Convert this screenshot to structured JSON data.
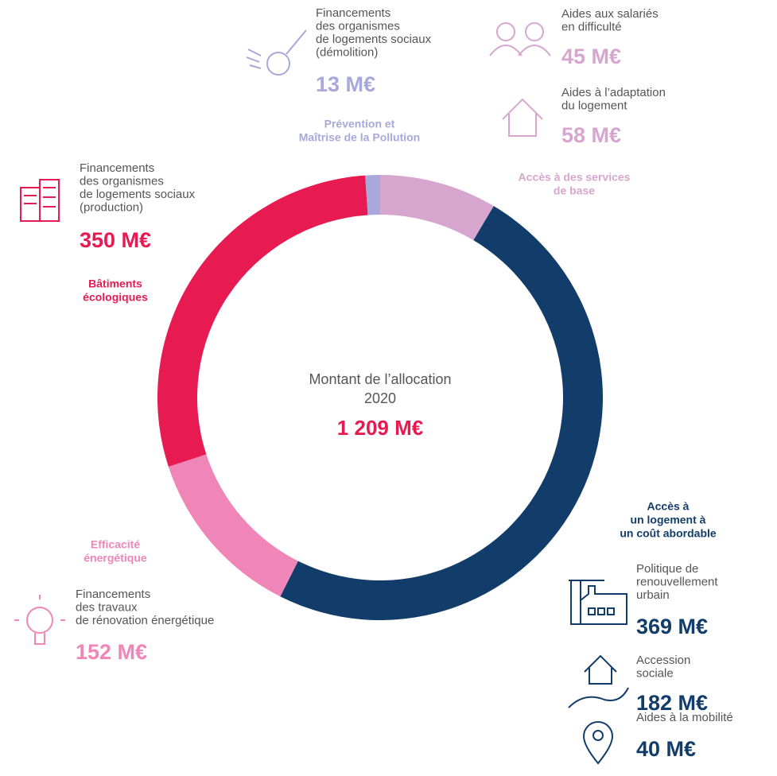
{
  "chart_data": {
    "type": "donut",
    "center": {
      "lines": [
        "Montant de l’allocation",
        "2020"
      ],
      "total": "1 209 M€"
    },
    "categories": [
      {
        "label": [
          "Prévention et",
          "Maîtrise de la Pollution"
        ],
        "color": "#a9a8da",
        "items": [
          {
            "lines": [
              "Financements",
              "des organismes",
              "de logements sociaux",
              "(démolition)"
            ],
            "value": 13,
            "value_label": "13 M€"
          }
        ]
      },
      {
        "label": [
          "Accès à des services",
          "de base"
        ],
        "color": "#d7a6cf",
        "items": [
          {
            "lines": [
              "Aides aux salariés",
              "en difficulté"
            ],
            "value": 45,
            "value_label": "45 M€"
          },
          {
            "lines": [
              "Aides à l’adaptation",
              "du logement"
            ],
            "value": 58,
            "value_label": "58 M€"
          }
        ]
      },
      {
        "label": [
          "Accès à",
          "un logement à",
          "un coût abordable"
        ],
        "color": "#123d6a",
        "items": [
          {
            "lines": [
              "Politique de",
              "renouvellement",
              "urbain"
            ],
            "value": 369,
            "value_label": "369 M€"
          },
          {
            "lines": [
              "Accession",
              "sociale"
            ],
            "value": 182,
            "value_label": "182 M€"
          },
          {
            "lines": [
              "Aides à la mobilité"
            ],
            "value": 40,
            "value_label": "40 M€"
          }
        ]
      },
      {
        "label": [
          "Efficacité",
          "énergétique"
        ],
        "color": "#ef86b7",
        "items": [
          {
            "lines": [
              "Financements",
              "des travaux",
              "de rénovation énergétique"
            ],
            "value": 152,
            "value_label": "152 M€"
          }
        ]
      },
      {
        "label": [
          "Bâtiments",
          "écologiques"
        ],
        "color": "#e81a52",
        "items": [
          {
            "lines": [
              "Financements",
              "des organismes",
              "de logements sociaux",
              "(production)"
            ],
            "value": 350,
            "value_label": "350 M€"
          }
        ]
      }
    ]
  }
}
